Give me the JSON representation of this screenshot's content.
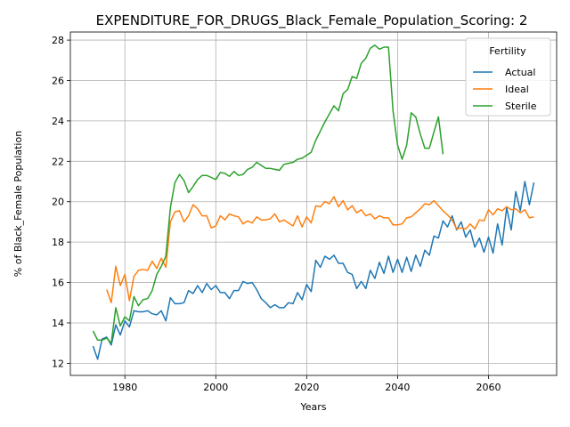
{
  "chart_data": {
    "type": "line",
    "title": "EXPENDITURE_FOR_DRUGS_Black_Female_Population_Scoring: 2",
    "xlabel": "Years",
    "ylabel": "% of Black_Female Population",
    "xlim": [
      1968,
      2075
    ],
    "ylim": [
      11.4,
      28.4
    ],
    "xticks": [
      1980,
      2000,
      2020,
      2040,
      2060
    ],
    "yticks": [
      12,
      14,
      16,
      18,
      20,
      22,
      24,
      26,
      28
    ],
    "grid": true,
    "legend": {
      "title": "Fertility",
      "position": "top-right"
    },
    "series": [
      {
        "name": "Actual",
        "color": "#1f77b4",
        "x": [
          1973,
          1974,
          1975,
          1976,
          1977,
          1978,
          1979,
          1980,
          1981,
          1982,
          1983,
          1984,
          1985,
          1986,
          1987,
          1988,
          1989,
          1990,
          1991,
          1992,
          1993,
          1994,
          1995,
          1996,
          1997,
          1998,
          1999,
          2000,
          2001,
          2002,
          2003,
          2004,
          2005,
          2006,
          2007,
          2008,
          2009,
          2010,
          2011,
          2012,
          2013,
          2014,
          2015,
          2016,
          2017,
          2018,
          2019,
          2020,
          2021,
          2022,
          2023,
          2024,
          2025,
          2026,
          2027,
          2028,
          2029,
          2030,
          2031,
          2032,
          2033,
          2034,
          2035,
          2036,
          2037,
          2038,
          2039,
          2040,
          2041,
          2042,
          2043,
          2044,
          2045,
          2046,
          2047,
          2048,
          2049,
          2050,
          2051,
          2052,
          2053,
          2054,
          2055,
          2056,
          2057,
          2058,
          2059,
          2060,
          2061,
          2062,
          2063,
          2064,
          2065,
          2066,
          2067,
          2068,
          2069,
          2070
        ],
        "y": [
          12.85,
          12.2,
          13.2,
          13.3,
          12.9,
          13.9,
          13.4,
          14.1,
          13.8,
          14.6,
          14.55,
          14.55,
          14.6,
          14.45,
          14.4,
          14.6,
          14.1,
          15.25,
          14.95,
          14.95,
          15.0,
          15.6,
          15.45,
          15.85,
          15.5,
          15.95,
          15.65,
          15.85,
          15.5,
          15.5,
          15.2,
          15.6,
          15.6,
          16.05,
          15.95,
          16.0,
          15.65,
          15.2,
          15.0,
          14.75,
          14.9,
          14.75,
          14.75,
          15.0,
          14.95,
          15.5,
          15.15,
          15.9,
          15.55,
          17.1,
          16.75,
          17.3,
          17.15,
          17.35,
          16.95,
          16.95,
          16.5,
          16.4,
          15.7,
          16.05,
          15.7,
          16.6,
          16.2,
          17.0,
          16.45,
          17.3,
          16.5,
          17.15,
          16.5,
          17.25,
          16.55,
          17.35,
          16.8,
          17.6,
          17.35,
          18.3,
          18.2,
          19.05,
          18.75,
          19.3,
          18.6,
          19.0,
          18.25,
          18.6,
          17.75,
          18.2,
          17.5,
          18.25,
          17.45,
          18.9,
          17.85,
          19.7,
          18.6,
          20.5,
          19.55,
          21.0,
          19.85,
          20.95
        ]
      },
      {
        "name": "Ideal",
        "color": "#ff7f0e",
        "x": [
          1976,
          1977,
          1978,
          1979,
          1980,
          1981,
          1982,
          1983,
          1984,
          1985,
          1986,
          1987,
          1988,
          1989,
          1990,
          1991,
          1992,
          1993,
          1994,
          1995,
          1996,
          1997,
          1998,
          1999,
          2000,
          2001,
          2002,
          2003,
          2004,
          2005,
          2006,
          2007,
          2008,
          2009,
          2010,
          2011,
          2012,
          2013,
          2014,
          2015,
          2016,
          2017,
          2018,
          2019,
          2020,
          2021,
          2022,
          2023,
          2024,
          2025,
          2026,
          2027,
          2028,
          2029,
          2030,
          2031,
          2032,
          2033,
          2034,
          2035,
          2036,
          2037,
          2038,
          2039,
          2040,
          2041,
          2042,
          2043,
          2044,
          2045,
          2046,
          2047,
          2048,
          2049,
          2050,
          2051,
          2052,
          2053,
          2054,
          2055,
          2056,
          2057,
          2058,
          2059,
          2060,
          2061,
          2062,
          2063,
          2064,
          2065,
          2066,
          2067,
          2068,
          2069,
          2070
        ],
        "y": [
          15.65,
          15.0,
          16.8,
          15.85,
          16.4,
          15.1,
          16.3,
          16.6,
          16.65,
          16.6,
          17.05,
          16.7,
          17.2,
          16.75,
          19.0,
          19.5,
          19.55,
          19.0,
          19.3,
          19.85,
          19.65,
          19.3,
          19.3,
          18.7,
          18.8,
          19.3,
          19.1,
          19.4,
          19.3,
          19.25,
          18.9,
          19.05,
          18.95,
          19.25,
          19.1,
          19.1,
          19.15,
          19.4,
          19.0,
          19.1,
          18.95,
          18.8,
          19.3,
          18.75,
          19.25,
          18.95,
          19.8,
          19.75,
          20.0,
          19.9,
          20.25,
          19.75,
          20.05,
          19.6,
          19.8,
          19.45,
          19.6,
          19.3,
          19.4,
          19.15,
          19.3,
          19.2,
          19.2,
          18.85,
          18.85,
          18.9,
          19.2,
          19.25,
          19.45,
          19.65,
          19.9,
          19.85,
          20.05,
          19.8,
          19.55,
          19.35,
          19.1,
          18.65,
          18.7,
          18.65,
          18.9,
          18.65,
          19.1,
          19.05,
          19.6,
          19.35,
          19.65,
          19.55,
          19.75,
          19.6,
          19.65,
          19.45,
          19.6,
          19.2,
          19.25
        ]
      },
      {
        "name": "Sterile",
        "color": "#2ca02c",
        "x": [
          1973,
          1974,
          1975,
          1976,
          1977,
          1978,
          1979,
          1980,
          1981,
          1982,
          1983,
          1984,
          1985,
          1986,
          1987,
          1988,
          1989,
          1990,
          1991,
          1992,
          1993,
          1994,
          1995,
          1996,
          1997,
          1998,
          1999,
          2000,
          2001,
          2002,
          2003,
          2004,
          2005,
          2006,
          2007,
          2008,
          2009,
          2010,
          2011,
          2012,
          2013,
          2014,
          2015,
          2016,
          2017,
          2018,
          2019,
          2020,
          2021,
          2022,
          2023,
          2024,
          2025,
          2026,
          2027,
          2028,
          2029,
          2030,
          2031,
          2032,
          2033,
          2034,
          2035,
          2036,
          2037,
          2038,
          2039,
          2040,
          2041,
          2042,
          2043,
          2044,
          2045,
          2046,
          2047,
          2048,
          2049,
          2050
        ],
        "y": [
          13.6,
          13.15,
          13.15,
          13.25,
          13.0,
          14.75,
          13.85,
          14.3,
          14.1,
          15.3,
          14.85,
          15.15,
          15.2,
          15.6,
          16.4,
          16.8,
          17.3,
          19.7,
          20.95,
          21.35,
          21.05,
          20.45,
          20.75,
          21.1,
          21.3,
          21.3,
          21.2,
          21.1,
          21.45,
          21.4,
          21.25,
          21.5,
          21.3,
          21.35,
          21.6,
          21.7,
          21.95,
          21.8,
          21.65,
          21.65,
          21.6,
          21.55,
          21.85,
          21.9,
          21.95,
          22.1,
          22.15,
          22.3,
          22.45,
          23.05,
          23.5,
          23.95,
          24.35,
          24.75,
          24.5,
          25.35,
          25.55,
          26.2,
          26.1,
          26.85,
          27.1,
          27.6,
          27.75,
          27.55,
          27.65,
          27.65,
          24.5,
          22.8,
          22.1,
          22.8,
          24.4,
          24.2,
          23.35,
          22.65,
          22.65,
          23.45,
          24.2,
          22.35
        ]
      }
    ]
  }
}
